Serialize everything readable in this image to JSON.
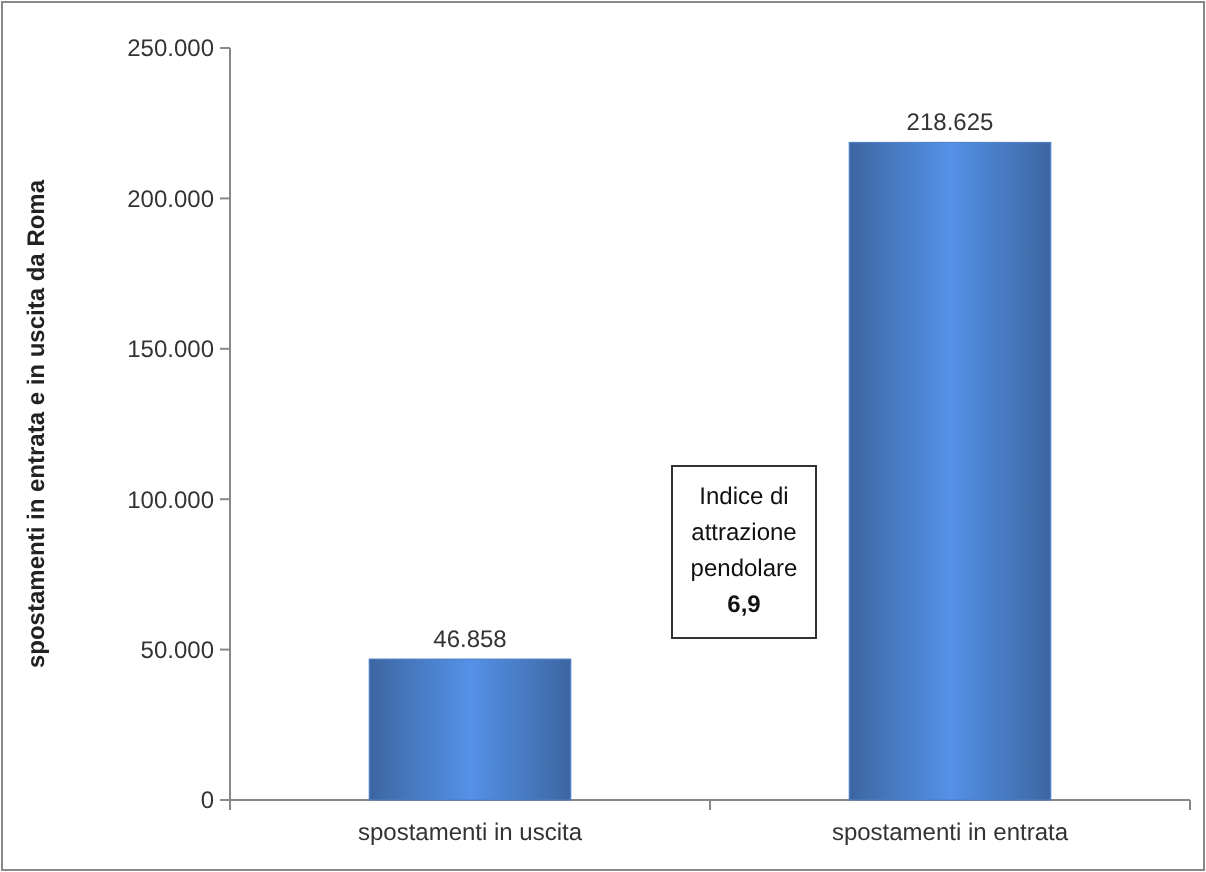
{
  "chart_data": {
    "type": "bar",
    "ylabel": "spostamenti in entrata e in uscita da Roma",
    "categories": [
      "spostamenti in uscita",
      "spostamenti in entrata"
    ],
    "values": [
      46858,
      218625
    ],
    "value_labels": [
      "46.858",
      "218.625"
    ],
    "color": "#4a7ec8",
    "ylim": [
      0,
      250000
    ],
    "yticks": [
      {
        "value": 0,
        "label": "0"
      },
      {
        "value": 50000,
        "label": "50.000"
      },
      {
        "value": 100000,
        "label": "100.000"
      },
      {
        "value": 150000,
        "label": "150.000"
      },
      {
        "value": 200000,
        "label": "200.000"
      },
      {
        "value": 250000,
        "label": "250.000"
      }
    ],
    "grid": false,
    "annotations": [
      "Indice di\nattrazione\npendolare\n6,9"
    ]
  }
}
